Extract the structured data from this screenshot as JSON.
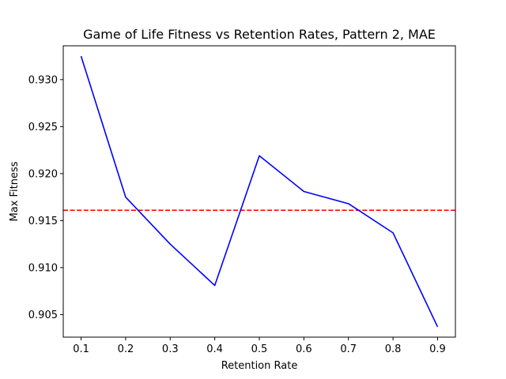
{
  "chart_data": {
    "type": "line",
    "title": "Game of Life Fitness vs Retention Rates, Pattern 2, MAE",
    "xlabel": "Retention Rate",
    "ylabel": "Max Fitness",
    "xlim": [
      0.06,
      0.94
    ],
    "ylim": [
      0.9026,
      0.9336
    ],
    "xticks": [
      "0.1",
      "0.2",
      "0.3",
      "0.4",
      "0.5",
      "0.6",
      "0.7",
      "0.8",
      "0.9"
    ],
    "yticks": [
      "0.905",
      "0.910",
      "0.915",
      "0.920",
      "0.925",
      "0.930"
    ],
    "grid": false,
    "legend": "none",
    "series": [
      {
        "color": "#0000ff",
        "style": "solid",
        "x": [
          0.1,
          0.2,
          0.3,
          0.4,
          0.5,
          0.6,
          0.7,
          0.8,
          0.9
        ],
        "y": [
          0.9325,
          0.9175,
          0.9125,
          0.9081,
          0.9219,
          0.9181,
          0.9168,
          0.9137,
          0.9037
        ]
      }
    ],
    "reference_lines": [
      {
        "orientation": "horizontal",
        "y": 0.9161,
        "color": "#ff0000",
        "style": "dashed"
      }
    ]
  }
}
